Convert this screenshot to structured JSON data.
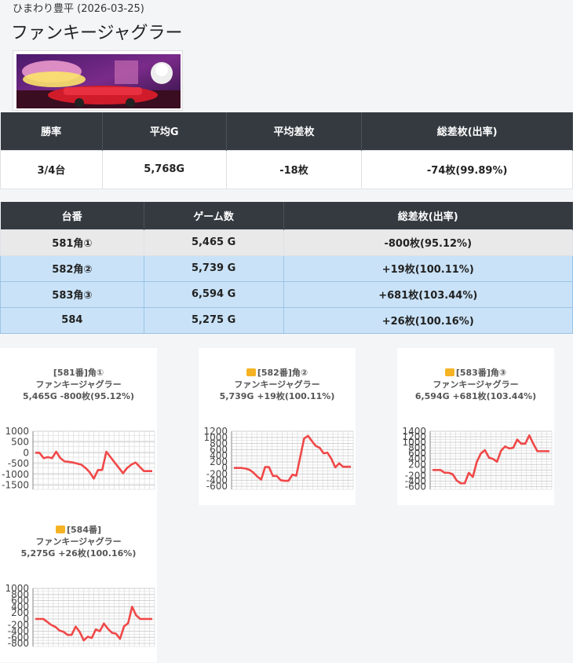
{
  "header": {
    "store_date": "ひまわり豊平 (2026-03-25)",
    "title": "ファンキージャグラー"
  },
  "summary": {
    "headers": [
      "勝率",
      "平均G",
      "平均差枚",
      "総差枚(出率)"
    ],
    "values": [
      "3/4台",
      "5,768G",
      "-18枚",
      "-74枚(99.89%)"
    ]
  },
  "machines": {
    "headers": [
      "台番",
      "ゲーム数",
      "総差枚(出率)"
    ],
    "rows": [
      [
        "581角①",
        "5,465 G",
        "-800枚(95.12%)"
      ],
      [
        "582角②",
        "5,739 G",
        "+19枚(100.11%)"
      ],
      [
        "583角③",
        "6,594 G",
        "+681枚(103.44%)"
      ],
      [
        "584",
        "5,275 G",
        "+26枚(100.16%)"
      ]
    ]
  },
  "chart_data": [
    {
      "type": "line",
      "title": "[581番]角①",
      "subtitle": "ファンキージャグラー",
      "stats": "5,465G -800枚(95.12%)",
      "thumb": false,
      "yticks": [
        1000,
        500,
        0,
        -500,
        -1000,
        -1500
      ],
      "ylim": [
        -1700,
        1000
      ],
      "values": [
        0,
        0,
        -250,
        -200,
        -250,
        50,
        -250,
        -400,
        -420,
        -450,
        -500,
        -550,
        -700,
        -900,
        -1200,
        -800,
        -800,
        50,
        -200,
        -450,
        -700,
        -950,
        -700,
        -550,
        -450,
        -650,
        -850,
        -850,
        -850
      ]
    },
    {
      "type": "line",
      "title": "[582番]角②",
      "subtitle": "ファンキージャグラー",
      "stats": "5,739G +19枚(100.11%)",
      "thumb": true,
      "yticks": [
        1200,
        1000,
        800,
        600,
        400,
        200,
        0,
        -200,
        -400,
        -600
      ],
      "ylim": [
        -700,
        1200
      ],
      "values": [
        0,
        0,
        0,
        -20,
        -60,
        -150,
        -280,
        -380,
        30,
        30,
        -260,
        -260,
        -400,
        -420,
        -420,
        -220,
        -250,
        350,
        960,
        1050,
        880,
        720,
        660,
        480,
        500,
        300,
        20,
        150,
        40,
        40,
        40
      ]
    },
    {
      "type": "line",
      "title": "[583番]角③",
      "subtitle": "ファンキージャグラー",
      "stats": "6,594G +681枚(103.44%)",
      "thumb": true,
      "yticks": [
        1400,
        1200,
        1000,
        800,
        600,
        400,
        200,
        0,
        -200,
        -400,
        -600
      ],
      "ylim": [
        -700,
        1400
      ],
      "values": [
        0,
        0,
        0,
        -100,
        -100,
        -150,
        -380,
        -480,
        -480,
        -100,
        -250,
        300,
        600,
        720,
        450,
        400,
        300,
        700,
        850,
        780,
        800,
        1100,
        950,
        950,
        1250,
        950,
        680,
        680,
        680,
        680
      ]
    },
    {
      "type": "line",
      "title": "[584番]",
      "subtitle": "ファンキージャグラー",
      "stats": "5,275G +26枚(100.16%)",
      "thumb": true,
      "yticks": [
        1000,
        800,
        600,
        400,
        200,
        0,
        -200,
        -400,
        -600,
        -800
      ],
      "ylim": [
        -900,
        1000
      ],
      "values": [
        0,
        0,
        0,
        -100,
        -200,
        -260,
        -380,
        -420,
        -520,
        -520,
        -250,
        -420,
        -700,
        -580,
        -620,
        -340,
        -400,
        -150,
        -320,
        -450,
        -480,
        -650,
        -240,
        -140,
        400,
        120,
        0,
        0,
        0,
        0
      ]
    }
  ]
}
